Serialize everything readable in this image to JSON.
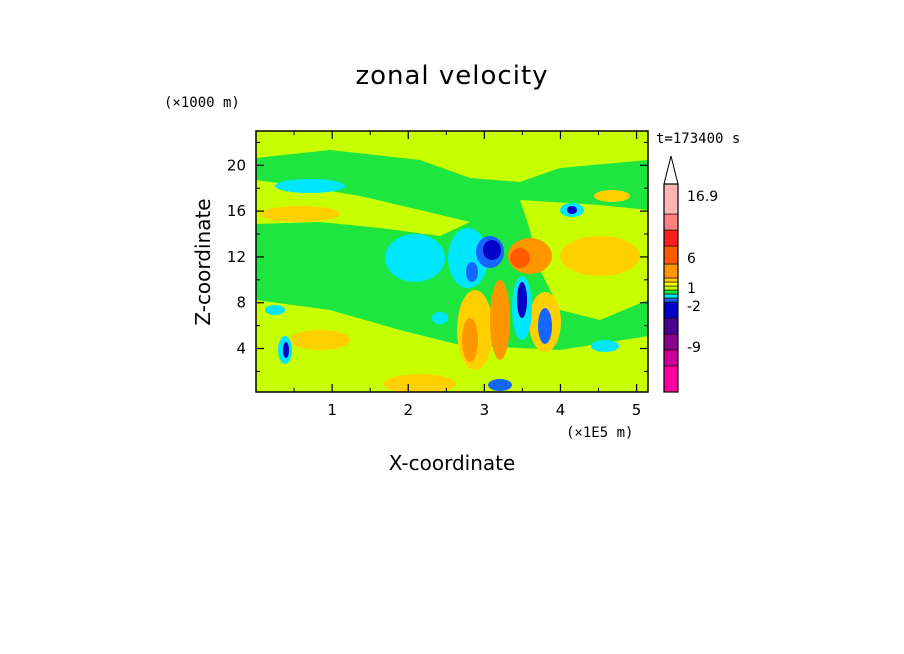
{
  "chart_data": {
    "type": "heatmap",
    "title": "zonal velocity",
    "xlabel": "X-coordinate",
    "ylabel": "Z-coordinate",
    "x_unit": "(×1E5 m)",
    "y_unit": "(×1000 m)",
    "time_label": "t=173400 s",
    "xlim": [
      0,
      5.15
    ],
    "ylim": [
      0.2,
      23
    ],
    "x_ticks": [
      1,
      2,
      3,
      4,
      5
    ],
    "y_ticks": [
      4,
      8,
      12,
      16,
      20
    ],
    "grid": false,
    "colorbar": {
      "colors": [
        "#ff00a0",
        "#cc0099",
        "#8a008a",
        "#4a0090",
        "#0000c8",
        "#1466ff",
        "#00e6ff",
        "#1ee640",
        "#c8ff00",
        "#ffff00",
        "#ffd000",
        "#ff9600",
        "#ff5a00",
        "#ff1e1e",
        "#ff8080",
        "#ffb4b4"
      ],
      "tick_labels": [
        "-9",
        "-2",
        "1",
        "6",
        "16.9"
      ],
      "extend": "max"
    }
  }
}
